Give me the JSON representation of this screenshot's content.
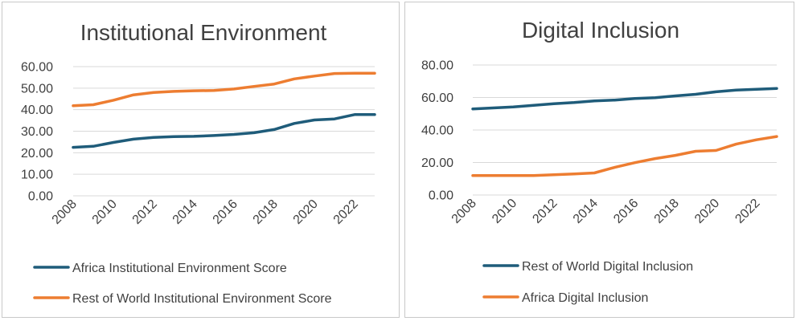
{
  "charts": [
    {
      "title": "Institutional Environment",
      "type": "line",
      "x": [
        2008,
        2009,
        2010,
        2011,
        2012,
        2013,
        2014,
        2015,
        2016,
        2017,
        2018,
        2019,
        2020,
        2021,
        2022,
        2023
      ],
      "x_tick_labels": [
        "2008",
        "2010",
        "2012",
        "2014",
        "2016",
        "2018",
        "2020",
        "2022"
      ],
      "y_tick_labels": [
        "0.00",
        "10.00",
        "20.00",
        "30.00",
        "40.00",
        "50.00",
        "60.00"
      ],
      "ylim": [
        0,
        60
      ],
      "grid": true,
      "legend_position": "bottom",
      "series": [
        {
          "name": "Africa Institutional Environment Score",
          "color": "#1f5c7a",
          "values": [
            22.5,
            23.0,
            24.8,
            26.3,
            27.1,
            27.5,
            27.6,
            28.0,
            28.5,
            29.3,
            30.8,
            33.6,
            35.2,
            35.7,
            37.7,
            37.7
          ]
        },
        {
          "name": "Rest of World Institutional Environment Score",
          "color": "#ed7d31",
          "values": [
            41.8,
            42.3,
            44.4,
            46.9,
            48.0,
            48.5,
            48.8,
            48.9,
            49.6,
            50.8,
            51.9,
            54.3,
            55.6,
            56.8,
            56.9,
            56.9
          ]
        }
      ]
    },
    {
      "title": "Digital Inclusion",
      "type": "line",
      "x": [
        2008,
        2009,
        2010,
        2011,
        2012,
        2013,
        2014,
        2015,
        2016,
        2017,
        2018,
        2019,
        2020,
        2021,
        2022,
        2023
      ],
      "x_tick_labels": [
        "2008",
        "2010",
        "2012",
        "2014",
        "2016",
        "2018",
        "2020",
        "2022"
      ],
      "y_tick_labels": [
        "0.00",
        "20.00",
        "40.00",
        "60.00",
        "80.00"
      ],
      "ylim": [
        0,
        80
      ],
      "grid": true,
      "legend_position": "bottom",
      "series": [
        {
          "name": "Rest of World Digital Inclusion",
          "color": "#1f5c7a",
          "values": [
            53.0,
            53.6,
            54.2,
            55.2,
            56.2,
            56.9,
            57.9,
            58.4,
            59.4,
            59.9,
            61.0,
            62.0,
            63.5,
            64.6,
            65.1,
            65.6
          ]
        },
        {
          "name": "Africa Digital Inclusion",
          "color": "#ed7d31",
          "values": [
            12.0,
            12.0,
            12.0,
            12.0,
            12.5,
            13.0,
            13.6,
            17.0,
            19.9,
            22.4,
            24.4,
            26.9,
            27.4,
            31.3,
            34.0,
            36.0
          ]
        }
      ]
    }
  ]
}
